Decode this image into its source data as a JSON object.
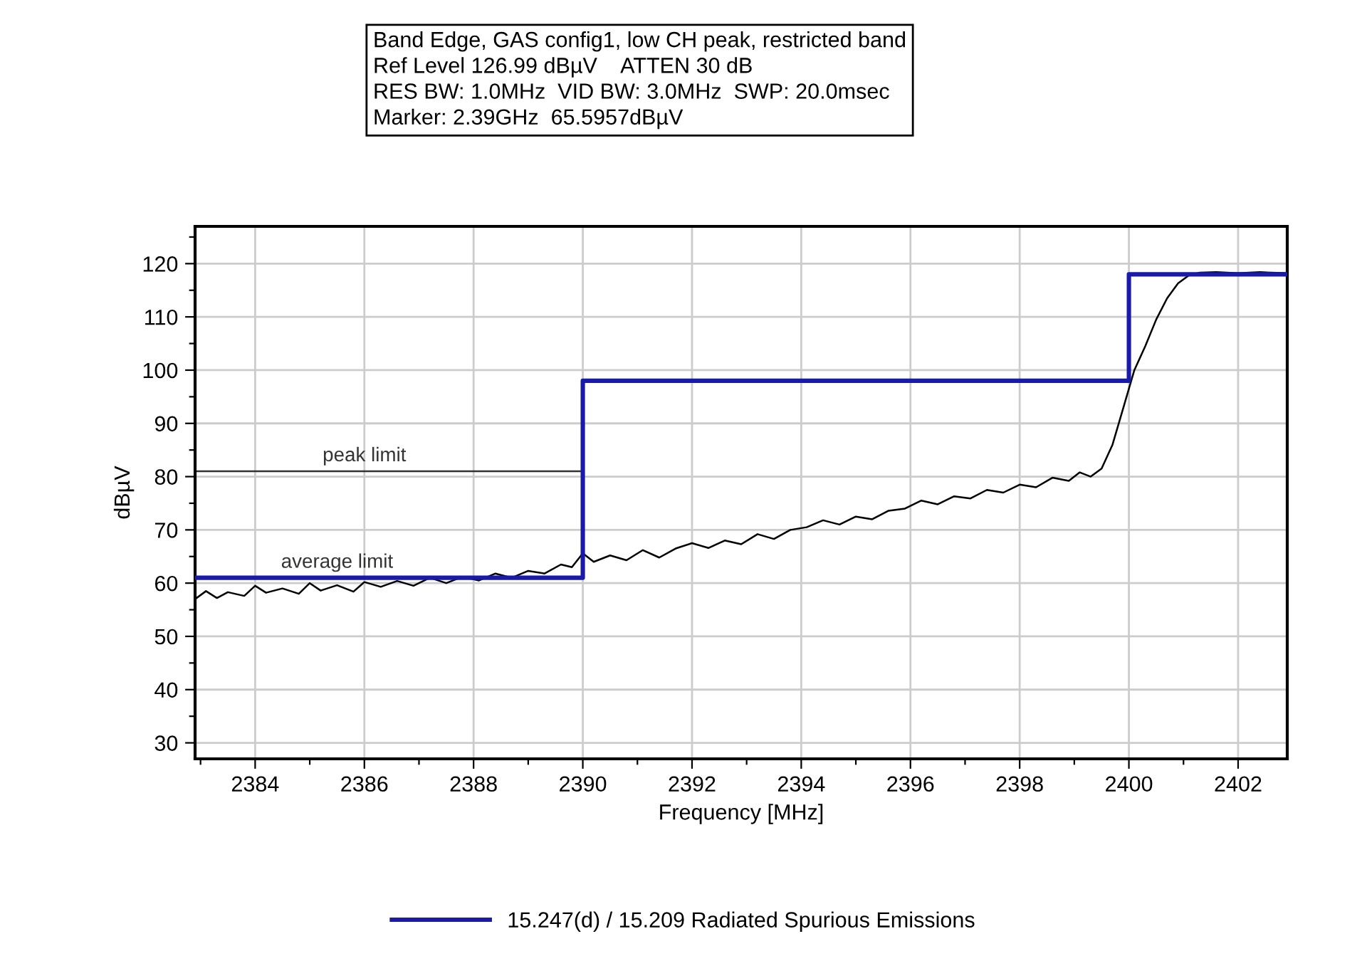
{
  "chart_data": {
    "type": "line",
    "xlabel": "Frequency [MHz]",
    "ylabel": "dBµV",
    "annotations": [
      "Band Edge, GAS config1, low CH peak, restricted band",
      "Ref Level 126.99 dBµV    ATTEN 30 dB",
      "RES BW: 1.0MHz  VID BW: 3.0MHz  SWP: 20.0msec",
      "Marker: 2.39GHz  65.5957dBµV",
      {
        "text": "peak limit",
        "x": 2386.0,
        "y": 81
      },
      {
        "text": "average limit",
        "x": 2385.5,
        "y": 61
      }
    ],
    "series": [
      {
        "color": "#000000",
        "x": [
          2382.9,
          2383.1,
          2383.3,
          2383.5,
          2383.8,
          2384.0,
          2384.2,
          2384.5,
          2384.8,
          2385.0,
          2385.2,
          2385.5,
          2385.8,
          2386.0,
          2386.3,
          2386.6,
          2386.9,
          2387.2,
          2387.5,
          2387.8,
          2388.1,
          2388.4,
          2388.7,
          2389.0,
          2389.3,
          2389.6,
          2389.8,
          2390.0,
          2390.2,
          2390.5,
          2390.8,
          2391.1,
          2391.4,
          2391.7,
          2392.0,
          2392.3,
          2392.6,
          2392.9,
          2393.2,
          2393.5,
          2393.8,
          2394.1,
          2394.4,
          2394.7,
          2395.0,
          2395.3,
          2395.6,
          2395.9,
          2396.2,
          2396.5,
          2396.8,
          2397.1,
          2397.4,
          2397.7,
          2398.0,
          2398.3,
          2398.6,
          2398.9,
          2399.1,
          2399.3,
          2399.5,
          2399.7,
          2399.9,
          2400.1,
          2400.3,
          2400.5,
          2400.7,
          2400.9,
          2401.1,
          2401.3,
          2401.6,
          2402.0,
          2402.4,
          2402.9
        ],
        "values": [
          57,
          58.5,
          57.2,
          58.3,
          57.6,
          59.5,
          58.2,
          59.0,
          58.0,
          60.0,
          58.6,
          59.6,
          58.4,
          60.2,
          59.3,
          60.4,
          59.5,
          61.0,
          60.0,
          61.2,
          60.5,
          61.8,
          61.0,
          62.3,
          61.8,
          63.5,
          63.0,
          65.6,
          64.0,
          65.2,
          64.3,
          66.2,
          64.8,
          66.5,
          67.5,
          66.6,
          68.0,
          67.3,
          69.2,
          68.3,
          70.0,
          70.5,
          71.8,
          71.0,
          72.5,
          72.0,
          73.6,
          74.0,
          75.5,
          74.8,
          76.3,
          75.9,
          77.5,
          77.0,
          78.5,
          78.0,
          79.8,
          79.2,
          80.8,
          80.0,
          81.5,
          86.0,
          93.0,
          100.0,
          104.5,
          109.5,
          113.5,
          116.3,
          117.8,
          118.3,
          118.4,
          118.2,
          118.4,
          118.2
        ]
      },
      {
        "color": "#333333",
        "x": [
          2382.9,
          2390
        ],
        "values": [
          81,
          81
        ]
      },
      {
        "type": "step",
        "name": "15.247(d) / 15.209 Radiated Spurious Emissions",
        "color": "#1a1aa8",
        "x": [
          2382.9,
          2390,
          2400,
          2402.9
        ],
        "values": [
          61,
          98,
          118,
          118
        ]
      }
    ],
    "xlim": [
      2382.9,
      2402.9
    ],
    "ylim": [
      27,
      127
    ],
    "xticks": [
      {
        "value": 2383,
        "label": null
      },
      2384,
      {
        "value": 2385,
        "label": null
      },
      2386,
      {
        "value": 2387,
        "label": null
      },
      2388,
      {
        "value": 2389,
        "label": null
      },
      2390,
      {
        "value": 2391,
        "label": null
      },
      2392,
      {
        "value": 2393,
        "label": null
      },
      2394,
      {
        "value": 2395,
        "label": null
      },
      2396,
      {
        "value": 2397,
        "label": null
      },
      2398,
      {
        "value": 2399,
        "label": null
      },
      2400,
      {
        "value": 2401,
        "label": null
      },
      2402
    ],
    "yticks": [
      30,
      {
        "value": 35,
        "label": null
      },
      40,
      {
        "value": 45,
        "label": null
      },
      50,
      {
        "value": 55,
        "label": null
      },
      60,
      {
        "value": 65,
        "label": null
      },
      70,
      {
        "value": 75,
        "label": null
      },
      80,
      {
        "value": 85,
        "label": null
      },
      90,
      {
        "value": 95,
        "label": null
      },
      100,
      {
        "value": 105,
        "label": null
      },
      110,
      {
        "value": 115,
        "label": null
      },
      120,
      {
        "value": 125,
        "label": null
      }
    ],
    "grid": true,
    "legend": "bottom"
  }
}
